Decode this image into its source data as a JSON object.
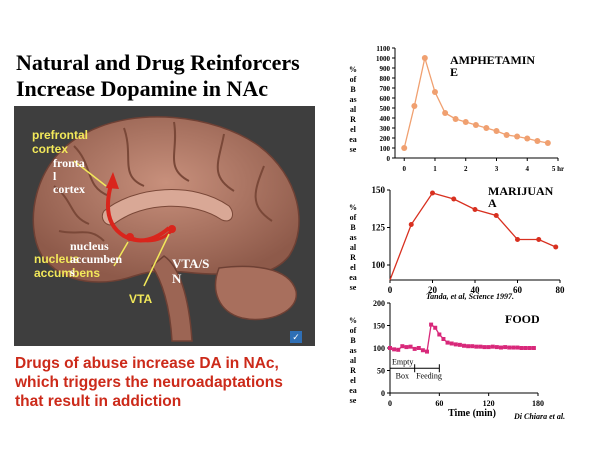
{
  "slide": {
    "title_lines": [
      "Natural and Drug Reinforcers",
      "Increase Dopamine in NAc"
    ],
    "caption_lines": [
      "Drugs of abuse increase DA in NAc,",
      "which triggers the neuroadaptations",
      "that result in addiction"
    ]
  },
  "brain": {
    "labels": {
      "prefrontal_cortex": "prefrontal\ncortex",
      "frontal_cortex": "fronta\nl\ncortex",
      "nucleus_accumbens_white": "nucleus\naccumben\ns",
      "nucleus_accumbens_yellow": "nucleus\naccumbens",
      "vta_sn": "VTA/S\nN",
      "vta": "VTA"
    },
    "colors": {
      "background": "#3e3e3e",
      "tissue": "#b87a66",
      "pathway": "#d9251c",
      "label_yellow": "#f2e85a"
    }
  },
  "chart_data": [
    {
      "type": "line",
      "title": "AMPHETAMIN\nE",
      "ylabel": "%\nof\nB\nas\nal\nR\nel\nea\nse",
      "xlabel": "",
      "ylim": [
        0,
        1100
      ],
      "yticks": [
        0,
        100,
        200,
        300,
        400,
        500,
        600,
        700,
        800,
        900,
        1000,
        1100
      ],
      "xlim": [
        -0.3,
        5
      ],
      "xticks": [
        "0",
        "1",
        "2",
        "3",
        "4",
        "5 hr"
      ],
      "series": [
        {
          "values": [
            [
              0,
              100
            ],
            [
              0.33,
              520
            ],
            [
              0.67,
              1000
            ],
            [
              1,
              660
            ],
            [
              1.33,
              450
            ],
            [
              1.67,
              390
            ],
            [
              2,
              360
            ],
            [
              2.33,
              330
            ],
            [
              2.67,
              300
            ],
            [
              3,
              270
            ],
            [
              3.33,
              230
            ],
            [
              3.67,
              215
            ],
            [
              4,
              195
            ],
            [
              4.33,
              170
            ],
            [
              4.67,
              150
            ]
          ],
          "color": "#f0a070"
        }
      ]
    },
    {
      "type": "line",
      "title": "MARIJUAN\nA",
      "ylabel": "%\nof\nB\nas\nal\nR\nel\nea\nse",
      "xlabel": "",
      "ylim": [
        90,
        150
      ],
      "yticks": [
        100,
        125,
        150
      ],
      "xlim": [
        0,
        80
      ],
      "xticks": [
        "0",
        "20",
        "40",
        "60",
        "80"
      ],
      "annotation": "Tanda, et al, Science 1997.",
      "series": [
        {
          "values": [
            [
              0,
              90
            ],
            [
              10,
              127
            ],
            [
              20,
              148
            ],
            [
              30,
              144
            ],
            [
              40,
              137
            ],
            [
              50,
              133
            ],
            [
              60,
              117
            ],
            [
              70,
              117
            ],
            [
              78,
              112
            ]
          ],
          "color": "#d83020"
        }
      ]
    },
    {
      "type": "line",
      "title": "FOOD",
      "ylabel": "%\nof\nB\nas\nal\nR\nel\nea\nse",
      "xlabel": "Time (min)",
      "ylim": [
        0,
        200
      ],
      "yticks": [
        0,
        50,
        100,
        150,
        200
      ],
      "xlim": [
        0,
        180
      ],
      "xticks": [
        "0",
        "60",
        "120",
        "180"
      ],
      "annotation": "Di Chiara et al.",
      "phases": [
        {
          "label": "Empty\nBox",
          "start": 0,
          "end": 30
        },
        {
          "label": "Feeding",
          "start": 30,
          "end": 60
        }
      ],
      "series": [
        {
          "values": [
            [
              0,
              100
            ],
            [
              5,
              97
            ],
            [
              10,
              96
            ],
            [
              15,
              104
            ],
            [
              20,
              102
            ],
            [
              25,
              103
            ],
            [
              30,
              98
            ],
            [
              35,
              100
            ],
            [
              40,
              95
            ],
            [
              45,
              92
            ],
            [
              50,
              152
            ],
            [
              55,
              145
            ],
            [
              60,
              130
            ],
            [
              65,
              120
            ],
            [
              70,
              112
            ],
            [
              75,
              110
            ],
            [
              80,
              108
            ],
            [
              85,
              107
            ],
            [
              90,
              105
            ],
            [
              95,
              104
            ],
            [
              100,
              104
            ],
            [
              105,
              103
            ],
            [
              110,
              103
            ],
            [
              115,
              102
            ],
            [
              120,
              102
            ],
            [
              125,
              103
            ],
            [
              130,
              102
            ],
            [
              135,
              101
            ],
            [
              140,
              102
            ],
            [
              145,
              101
            ],
            [
              150,
              101
            ],
            [
              155,
              101
            ],
            [
              160,
              100
            ],
            [
              165,
              100
            ],
            [
              170,
              100
            ],
            [
              175,
              100
            ]
          ],
          "color": "#d8287a"
        }
      ]
    }
  ]
}
